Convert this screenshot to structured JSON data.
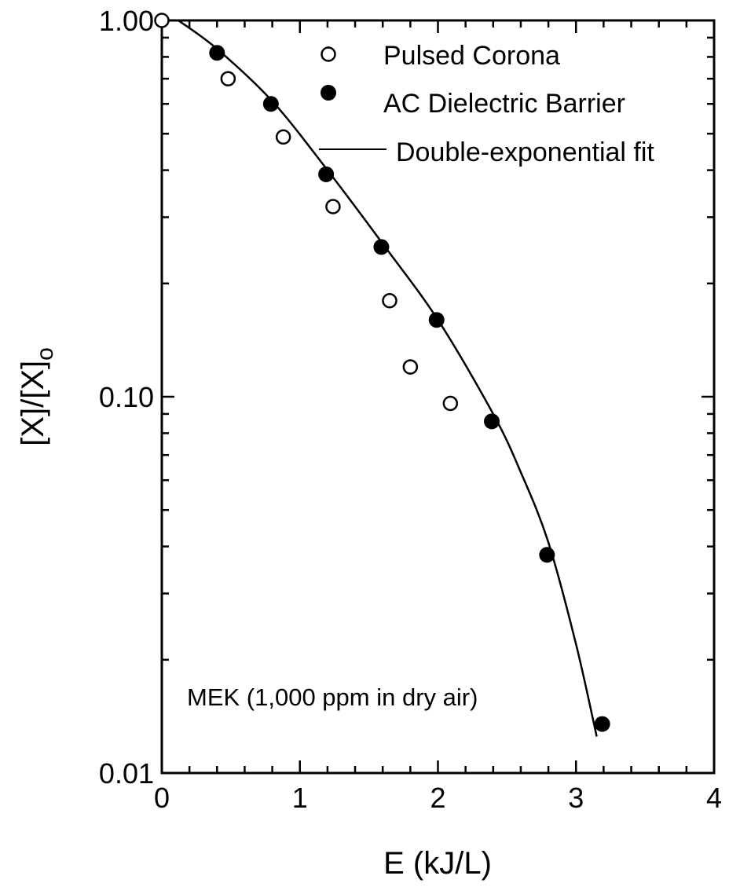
{
  "chart_data": {
    "type": "scatter",
    "title": "",
    "xlabel": "E (kJ/L)",
    "ylabel": "[X]/[X]o",
    "ylabel_main": "[X]/[X]",
    "ylabel_sub": "o",
    "xlim": [
      0,
      4
    ],
    "ylim": [
      0.01,
      1.0
    ],
    "yscale": "log",
    "grid": false,
    "legend_position": "top-right",
    "x_ticks": [
      0,
      1,
      2,
      3,
      4
    ],
    "x_tick_labels": [
      "0",
      "1",
      "2",
      "3",
      "4"
    ],
    "y_ticks": [
      0.01,
      0.1,
      1.0
    ],
    "y_tick_labels": [
      "0.01",
      "0.10",
      "1.00"
    ],
    "annotation": "MEK (1,000 ppm in dry air)",
    "series": [
      {
        "name": "Pulsed Corona",
        "marker": "open-circle",
        "x": [
          0,
          0.48,
          0.88,
          1.24,
          1.65,
          1.8,
          2.09
        ],
        "y": [
          1.0,
          0.7,
          0.49,
          0.32,
          0.18,
          0.12,
          0.096
        ]
      },
      {
        "name": "AC Dielectric Barrier",
        "marker": "filled-circle",
        "x": [
          0.4,
          0.79,
          1.19,
          1.59,
          1.99,
          2.39,
          2.79,
          3.19
        ],
        "y": [
          0.82,
          0.6,
          0.39,
          0.25,
          0.16,
          0.086,
          0.038,
          0.0135
        ]
      },
      {
        "name": "Double-exponential fit",
        "marker": "line",
        "x": [
          0.12,
          0.4,
          0.8,
          1.2,
          1.6,
          2.0,
          2.4,
          2.6,
          2.8,
          3.0,
          3.15
        ],
        "y": [
          1.0,
          0.84,
          0.61,
          0.4,
          0.255,
          0.16,
          0.09,
          0.063,
          0.041,
          0.022,
          0.0125
        ]
      }
    ],
    "colors": {
      "ink": "#000000",
      "background": "#ffffff"
    }
  }
}
